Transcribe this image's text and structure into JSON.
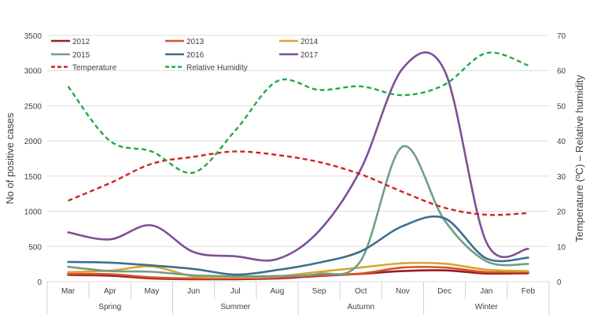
{
  "chart_data": {
    "type": "line",
    "title": "",
    "xlabel": "",
    "ylabel_left": "No of positive cases",
    "ylabel_right": "Temperature (ºC) – Relative humidity",
    "ylim_left": [
      0,
      3500
    ],
    "yticks_left": [
      0,
      500,
      1000,
      1500,
      2000,
      2500,
      3000,
      3500
    ],
    "ylim_right": [
      0,
      70
    ],
    "yticks_right": [
      0,
      10,
      20,
      30,
      40,
      50,
      60,
      70
    ],
    "categories": [
      "Mar",
      "Apr",
      "May",
      "Jun",
      "Jul",
      "Aug",
      "Sep",
      "Oct",
      "Nov",
      "Dec",
      "Jan",
      "Feb"
    ],
    "seasons": [
      {
        "name": "Spring",
        "months": [
          "Mar",
          "Apr",
          "May"
        ]
      },
      {
        "name": "Summer",
        "months": [
          "Jun",
          "Jul",
          "Aug"
        ]
      },
      {
        "name": "Autumn",
        "months": [
          "Sep",
          "Oct",
          "Nov"
        ]
      },
      {
        "name": "Winter",
        "months": [
          "Dec",
          "Jan",
          "Feb"
        ]
      }
    ],
    "legend_position": "top-left",
    "series": [
      {
        "name": "2012",
        "axis": "left",
        "color": "#9b1c1c",
        "dash": "solid",
        "values": [
          95,
          85,
          45,
          35,
          35,
          45,
          80,
          110,
          150,
          160,
          115,
          120
        ]
      },
      {
        "name": "2013",
        "axis": "left",
        "color": "#d8532b",
        "dash": "solid",
        "values": [
          110,
          105,
          60,
          45,
          45,
          55,
          90,
          115,
          200,
          200,
          135,
          140
        ]
      },
      {
        "name": "2014",
        "axis": "left",
        "color": "#d9a632",
        "dash": "solid",
        "values": [
          135,
          155,
          215,
          75,
          60,
          75,
          140,
          200,
          260,
          255,
          170,
          150
        ]
      },
      {
        "name": "2015",
        "axis": "left",
        "color": "#6f9e8c",
        "dash": "solid",
        "values": [
          210,
          150,
          140,
          90,
          75,
          80,
          110,
          300,
          1920,
          870,
          290,
          250
        ]
      },
      {
        "name": "2016",
        "axis": "left",
        "color": "#3e6e8e",
        "dash": "solid",
        "values": [
          280,
          270,
          230,
          180,
          100,
          165,
          270,
          430,
          790,
          900,
          330,
          340
        ]
      },
      {
        "name": "2017",
        "axis": "left",
        "color": "#7e4f96",
        "dash": "solid",
        "values": [
          700,
          600,
          800,
          420,
          360,
          320,
          720,
          1600,
          3030,
          3000,
          560,
          465
        ]
      },
      {
        "name": "Temperature",
        "axis": "right",
        "color": "#d32020",
        "dash": "dashed",
        "values": [
          23,
          28,
          33.5,
          35.5,
          37,
          36,
          34,
          30.5,
          25.5,
          21,
          19,
          19.5
        ]
      },
      {
        "name": "Relative Humidity",
        "axis": "right",
        "color": "#22a844",
        "dash": "dashed",
        "values": [
          55.5,
          40,
          37,
          31,
          43,
          57,
          54.5,
          55.5,
          53,
          56,
          65,
          61.5
        ]
      }
    ]
  }
}
